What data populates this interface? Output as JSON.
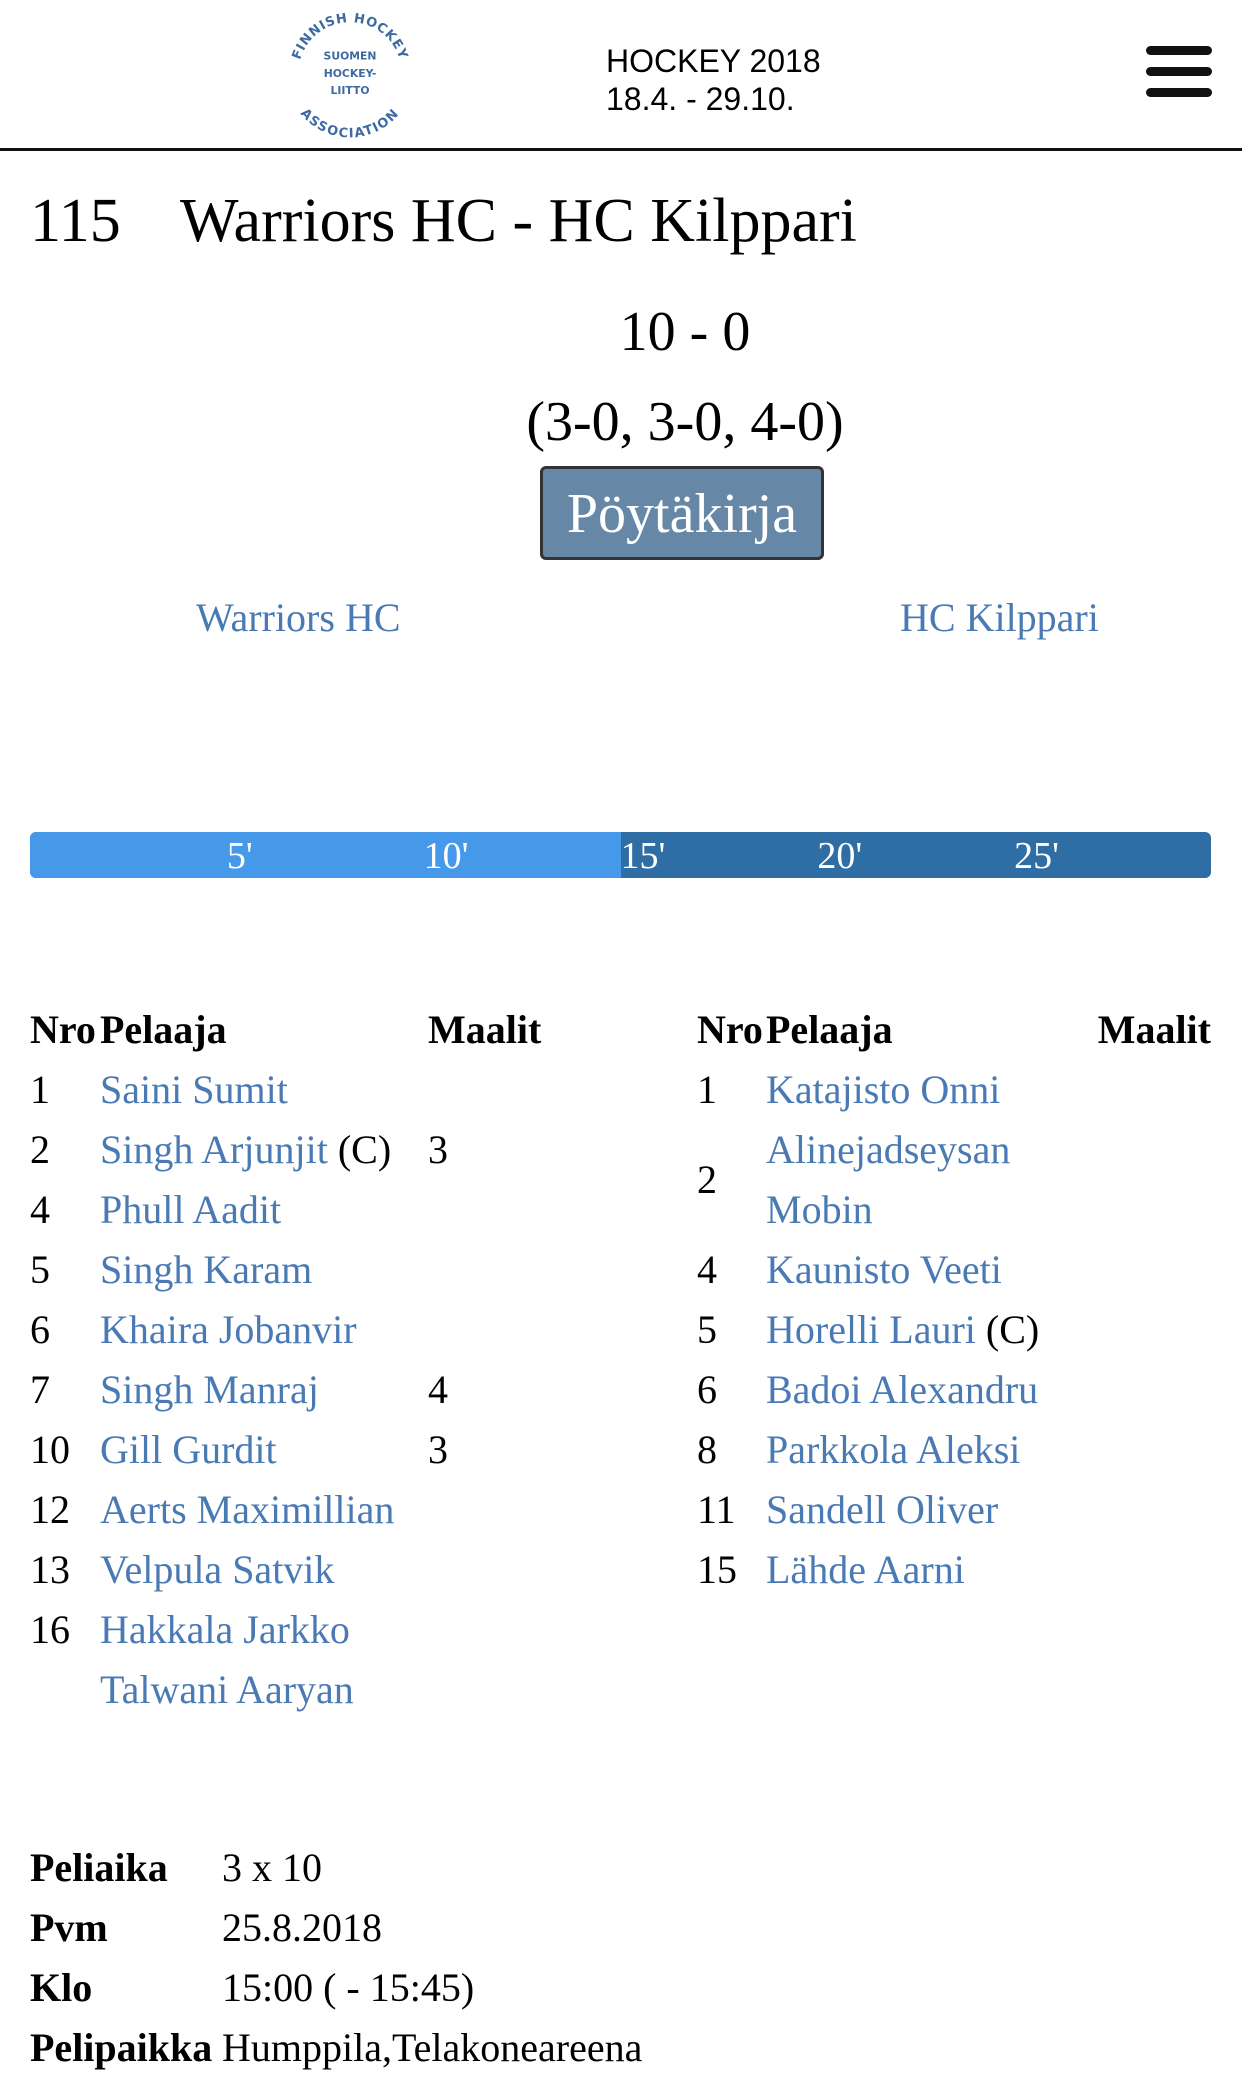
{
  "header": {
    "logo": {
      "outer_text_top": "FINNISH HOCKEY",
      "outer_text_bottom": "ASSOCIATION",
      "inner_lines": [
        "SUOMEN",
        "HOCKEY-",
        "LIITTO"
      ]
    },
    "season_title": "HOCKEY 2018",
    "season_dates": "18.4. - 29.10.",
    "menu_icon": "hamburger-icon"
  },
  "game": {
    "number": "115",
    "title": "Warriors HC - HC Kilppari",
    "score": "10 - 0",
    "periods": "(3-0, 3-0, 4-0)",
    "report_button": "Pöytäkirja",
    "home_team": "Warriors HC",
    "away_team": "HC Kilppari"
  },
  "timeline": {
    "ticks": [
      "5'",
      "10'",
      "15'",
      "20'",
      "25'"
    ],
    "tick_minutes": [
      5,
      10,
      15,
      20,
      25
    ],
    "total_minutes": 30,
    "highlight_until_minute": 15,
    "colors": {
      "first": "#4699e8",
      "second": "#2f6ea5"
    }
  },
  "roster_headers": {
    "nro": "Nro",
    "player": "Pelaaja",
    "goals": "Maalit"
  },
  "home_roster": [
    {
      "nro": "1",
      "name": "Saini Sumit",
      "extra": "",
      "goals": ""
    },
    {
      "nro": "2",
      "name": "Singh Arjunjit",
      "extra": "(C)",
      "goals": "3"
    },
    {
      "nro": "4",
      "name": "Phull Aadit",
      "extra": "",
      "goals": ""
    },
    {
      "nro": "5",
      "name": "Singh Karam",
      "extra": "",
      "goals": ""
    },
    {
      "nro": "6",
      "name": "Khaira Jobanvir",
      "extra": "",
      "goals": ""
    },
    {
      "nro": "7",
      "name": "Singh Manraj",
      "extra": "",
      "goals": "4"
    },
    {
      "nro": "10",
      "name": "Gill Gurdit",
      "extra": "",
      "goals": "3"
    },
    {
      "nro": "12",
      "name": "Aerts Maximillian",
      "extra": "",
      "goals": ""
    },
    {
      "nro": "13",
      "name": "Velpula Satvik",
      "extra": "",
      "goals": ""
    },
    {
      "nro": "16",
      "name": "Hakkala Jarkko",
      "extra": "",
      "goals": ""
    },
    {
      "nro": "",
      "name": "Talwani Aaryan",
      "extra": "",
      "goals": ""
    }
  ],
  "away_roster": [
    {
      "nro": "1",
      "name": "Katajisto Onni",
      "extra": "",
      "goals": ""
    },
    {
      "nro": "2",
      "name": "Alinejadseysan Mobin",
      "extra": "",
      "goals": ""
    },
    {
      "nro": "4",
      "name": "Kaunisto Veeti",
      "extra": "",
      "goals": ""
    },
    {
      "nro": "5",
      "name": "Horelli Lauri",
      "extra": "(C)",
      "goals": ""
    },
    {
      "nro": "6",
      "name": "Badoi Alexandru",
      "extra": "",
      "goals": ""
    },
    {
      "nro": "8",
      "name": "Parkkola Aleksi",
      "extra": "",
      "goals": ""
    },
    {
      "nro": "11",
      "name": "Sandell Oliver",
      "extra": "",
      "goals": ""
    },
    {
      "nro": "15",
      "name": "Lähde Aarni",
      "extra": "",
      "goals": ""
    }
  ],
  "info": [
    {
      "label": "Peliaika",
      "value": "3 x 10"
    },
    {
      "label": "Pvm",
      "value": "25.8.2018"
    },
    {
      "label": "Klo",
      "value": "15:00 ( - 15:45)"
    },
    {
      "label": "Pelipaikka",
      "value": "Humppila,Telakoneareena"
    }
  ]
}
